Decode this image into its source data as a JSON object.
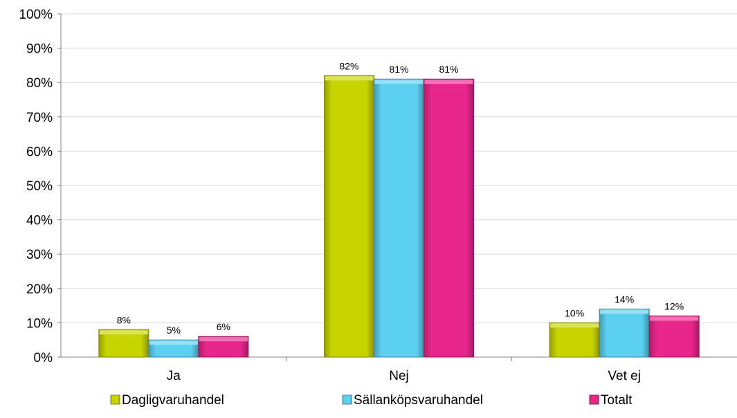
{
  "chart_data": {
    "type": "bar",
    "categories": [
      "Ja",
      "Nej",
      "Vet ej"
    ],
    "series": [
      {
        "name": "Dagligvaruhandel",
        "values": [
          8,
          82,
          10
        ],
        "color": "#c8d400",
        "labels": [
          "8%",
          "82%",
          "10%"
        ]
      },
      {
        "name": "Sällanköpsvaruhandel",
        "values": [
          5,
          81,
          14
        ],
        "color": "#5cd0f0",
        "labels": [
          "5%",
          "81%",
          "14%"
        ]
      },
      {
        "name": "Totalt",
        "values": [
          6,
          81,
          12
        ],
        "color": "#e8268c",
        "labels": [
          "6%",
          "81%",
          "12%"
        ]
      }
    ],
    "ylim": [
      0,
      100
    ],
    "yticks": [
      "0%",
      "10%",
      "20%",
      "30%",
      "40%",
      "50%",
      "60%",
      "70%",
      "80%",
      "90%",
      "100%"
    ],
    "grid": true,
    "legend_position": "bottom"
  }
}
